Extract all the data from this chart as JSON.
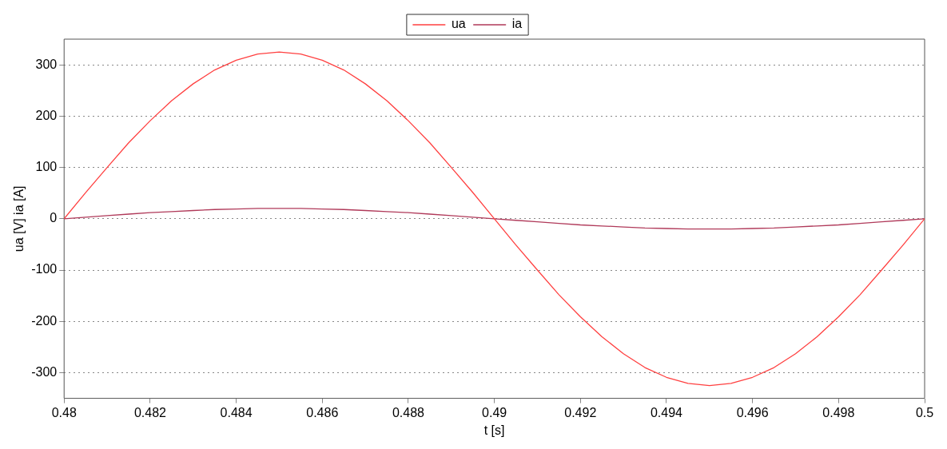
{
  "chart_data": {
    "type": "line",
    "xlabel": "t [s]",
    "ylabel": "ua [V] ia [A]",
    "x": [
      0.48,
      0.4805,
      0.481,
      0.4815,
      0.482,
      0.4825,
      0.483,
      0.4835,
      0.484,
      0.4845,
      0.485,
      0.4855,
      0.486,
      0.4865,
      0.487,
      0.4875,
      0.488,
      0.4885,
      0.489,
      0.4895,
      0.49,
      0.4905,
      0.491,
      0.4915,
      0.492,
      0.4925,
      0.493,
      0.4935,
      0.494,
      0.4945,
      0.495,
      0.4955,
      0.496,
      0.4965,
      0.497,
      0.4975,
      0.498,
      0.4985,
      0.499,
      0.4995,
      0.5
    ],
    "series": [
      {
        "name": "ua",
        "color": "#ff4040",
        "values": [
          0,
          51,
          100,
          148,
          191,
          230,
          263,
          290,
          309,
          321,
          325,
          321,
          309,
          290,
          263,
          230,
          191,
          148,
          100,
          51,
          0,
          -51,
          -100,
          -148,
          -191,
          -230,
          -263,
          -290,
          -309,
          -321,
          -325,
          -321,
          -309,
          -290,
          -263,
          -230,
          -191,
          -148,
          -100,
          -51,
          0
        ]
      },
      {
        "name": "ia",
        "color": "#b03a5a",
        "values": [
          0,
          3,
          6,
          9,
          12,
          14,
          16,
          18,
          19,
          20,
          20,
          20,
          19,
          18,
          16,
          14,
          12,
          9,
          6,
          3,
          0,
          -3,
          -6,
          -9,
          -12,
          -14,
          -16,
          -18,
          -19,
          -20,
          -20,
          -20,
          -19,
          -18,
          -16,
          -14,
          -12,
          -9,
          -6,
          -3,
          0
        ]
      }
    ],
    "xlim": [
      0.48,
      0.5
    ],
    "xticks": [
      0.48,
      0.482,
      0.484,
      0.486,
      0.488,
      0.49,
      0.492,
      0.494,
      0.496,
      0.498,
      0.5
    ],
    "ylim": [
      -350,
      350
    ],
    "yticks": [
      -300,
      -200,
      -100,
      0,
      100,
      200,
      300
    ],
    "grid": "y",
    "legend": "top",
    "marker": "none",
    "line_style": "solid"
  }
}
